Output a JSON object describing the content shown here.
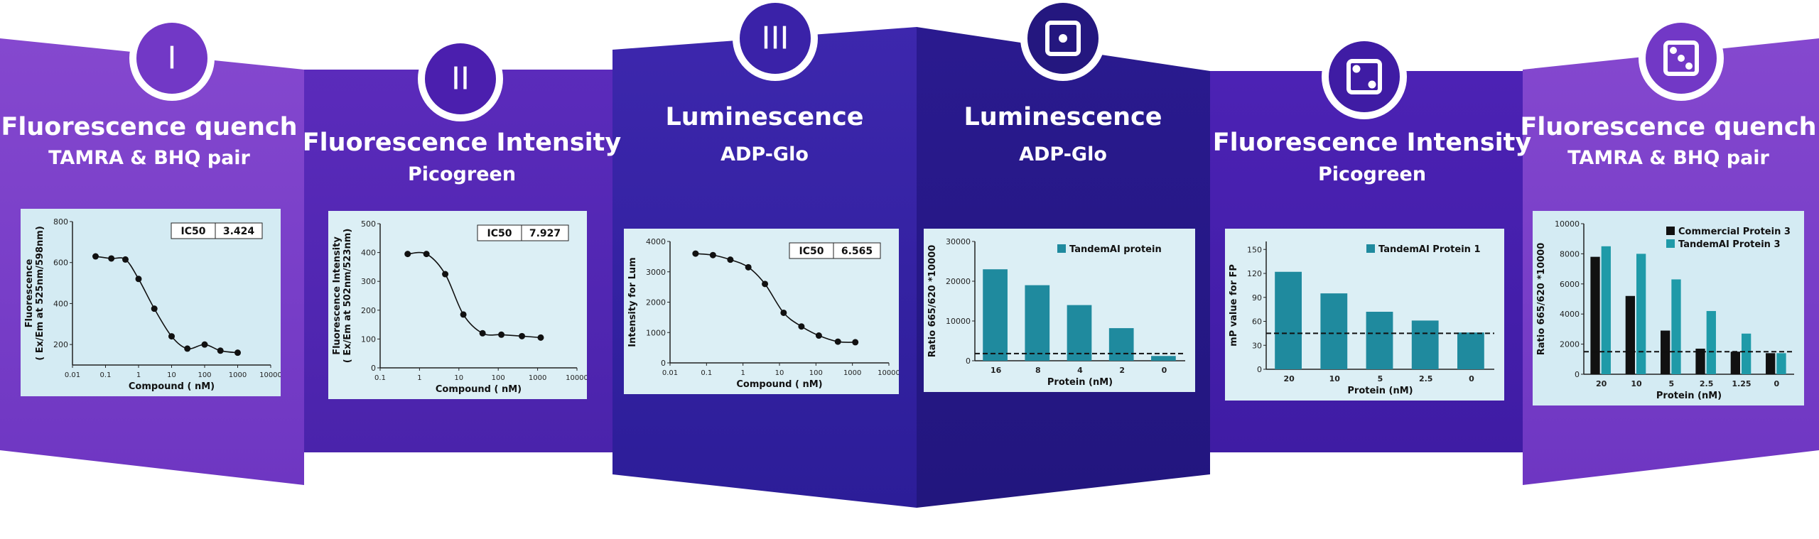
{
  "panels": [
    {
      "numeral": "I",
      "title": "Fluorescence quench",
      "subtitle": "TAMRA & BHQ pair"
    },
    {
      "numeral": "II",
      "title": "Fluorescence Intensity",
      "subtitle": "Picogreen"
    },
    {
      "numeral": "III",
      "title": "Luminescence",
      "subtitle": "ADP-Glo"
    },
    {
      "title": "Luminescence",
      "subtitle": "ADP-Glo"
    },
    {
      "title": "Fluorescence Intensity",
      "subtitle": "Picogreen"
    },
    {
      "title": "Fluorescence quench",
      "subtitle": "TAMRA & BHQ pair"
    }
  ],
  "chart_data": [
    {
      "type": "line",
      "log_x": true,
      "ylabel": [
        "Fluorescence",
        "( Ex/Em at 525nm/598nm)"
      ],
      "xlabel": "Compound ( nM)",
      "x": [
        0.05,
        0.15,
        0.4,
        1,
        3,
        10,
        30,
        100,
        300,
        1000
      ],
      "values": [
        630,
        620,
        615,
        520,
        375,
        240,
        180,
        200,
        170,
        160
      ],
      "xlim": [
        0.01,
        10000
      ],
      "xticks": [
        0.01,
        0.1,
        1,
        10,
        100,
        1000,
        10000
      ],
      "ylim": [
        100,
        800
      ],
      "yticks": [
        200,
        400,
        600,
        800
      ],
      "ic50_label": "IC50",
      "ic50": 3.424
    },
    {
      "type": "line",
      "log_x": true,
      "ylabel": [
        "Fluorescence Intensity",
        "( Ex/Em at 502nm/523nm)"
      ],
      "xlabel": "Compound ( nM)",
      "x": [
        0.5,
        1.5,
        4.5,
        13,
        40,
        120,
        400,
        1200
      ],
      "values": [
        395,
        395,
        325,
        185,
        120,
        115,
        110,
        105
      ],
      "xlim": [
        0.1,
        10000
      ],
      "xticks": [
        0.1,
        1,
        10,
        100,
        1000,
        10000
      ],
      "ylim": [
        0,
        500
      ],
      "yticks": [
        0,
        100,
        200,
        300,
        400,
        500
      ],
      "ic50_label": "IC50",
      "ic50": 7.927
    },
    {
      "type": "line",
      "log_x": true,
      "ylabel": [
        "Intensity for Lum"
      ],
      "xlabel": "Compound ( nM)",
      "x": [
        0.05,
        0.15,
        0.45,
        1.4,
        4,
        13,
        40,
        120,
        400,
        1200
      ],
      "values": [
        3600,
        3550,
        3400,
        3150,
        2600,
        1650,
        1200,
        900,
        700,
        680
      ],
      "xlim": [
        0.01,
        10000
      ],
      "xticks": [
        0.01,
        0.1,
        1,
        10,
        100,
        1000,
        10000
      ],
      "ylim": [
        0,
        4000
      ],
      "yticks": [
        0,
        1000,
        2000,
        3000,
        4000
      ],
      "ic50_label": "IC50",
      "ic50": 6.565
    },
    {
      "type": "bar",
      "ylabel": [
        "Ratio 665/620 *10000"
      ],
      "xlabel": "Protein (nM)",
      "categories": [
        "16",
        "8",
        "4",
        "2",
        "0"
      ],
      "series": [
        {
          "name": "TandemAI protein",
          "color": "#1f8a9e",
          "values": [
            23000,
            19000,
            14000,
            8200,
            1200
          ]
        }
      ],
      "ylim": [
        0,
        30000
      ],
      "yticks": [
        0,
        10000,
        20000,
        30000
      ],
      "hline": 1800,
      "legend": "upper right"
    },
    {
      "type": "bar",
      "ylabel": [
        "mP value for FP"
      ],
      "xlabel": "Protein (nM)",
      "categories": [
        "20",
        "10",
        "5",
        "2.5",
        "0"
      ],
      "series": [
        {
          "name": "TandemAI Protein 1",
          "color": "#1f8a9e",
          "values": [
            122,
            95,
            72,
            61,
            46
          ]
        }
      ],
      "ylim": [
        0,
        160
      ],
      "yticks": [
        0,
        30,
        60,
        90,
        120,
        150
      ],
      "hline": 45,
      "legend": "upper right"
    },
    {
      "type": "bar",
      "ylabel": [
        "Ratio 665/620 *10000"
      ],
      "xlabel": "Protein (nM)",
      "categories": [
        "20",
        "10",
        "5",
        "2.5",
        "1.25",
        "0"
      ],
      "series": [
        {
          "name": "Commercial Protein 3",
          "color": "#111111",
          "values": [
            7800,
            5200,
            2900,
            1700,
            1500,
            1400
          ]
        },
        {
          "name": "TandemAI Protein 3",
          "color": "#1f9aa8",
          "values": [
            8500,
            8000,
            6300,
            4200,
            2700,
            1400
          ]
        }
      ],
      "ylim": [
        0,
        10000
      ],
      "yticks": [
        0,
        2000,
        4000,
        6000,
        8000,
        10000
      ],
      "hline": 1500,
      "legend": "upper right"
    }
  ]
}
